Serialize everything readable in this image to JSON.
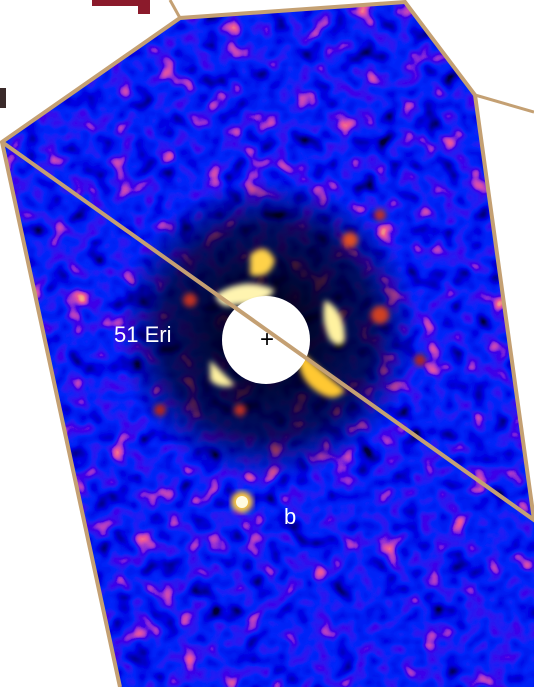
{
  "labels": {
    "star": "51 Eri",
    "planet": "b",
    "marker": "+"
  }
}
